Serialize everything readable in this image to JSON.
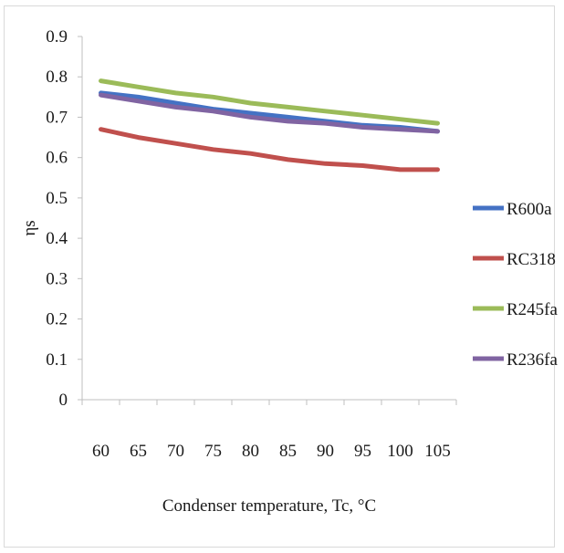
{
  "chart_data": {
    "type": "line",
    "x": [
      60,
      65,
      70,
      75,
      80,
      85,
      90,
      95,
      100,
      105
    ],
    "xlabel": "Condenser temperature, Tc, °C",
    "ylabel": "ηs",
    "ylim": [
      0,
      0.9
    ],
    "yticks": [
      "0",
      "0.1",
      "0.2",
      "0.3",
      "0.4",
      "0.5",
      "0.6",
      "0.7",
      "0.8",
      "0.9"
    ],
    "xticks": [
      "60",
      "65",
      "70",
      "75",
      "80",
      "85",
      "90",
      "95",
      "100",
      "105"
    ],
    "grid": false,
    "legend_position": "right",
    "series": [
      {
        "name": "R600a",
        "color": "#4472c4",
        "values": [
          0.76,
          0.75,
          0.735,
          0.72,
          0.71,
          0.7,
          0.69,
          0.68,
          0.675,
          0.665
        ]
      },
      {
        "name": "RC318",
        "color": "#c0504d",
        "values": [
          0.67,
          0.65,
          0.635,
          0.62,
          0.61,
          0.595,
          0.585,
          0.58,
          0.57,
          0.57
        ]
      },
      {
        "name": "R245fa",
        "color": "#9bbb59",
        "values": [
          0.79,
          0.775,
          0.76,
          0.75,
          0.735,
          0.725,
          0.715,
          0.705,
          0.695,
          0.685
        ]
      },
      {
        "name": "R236fa",
        "color": "#8064a2",
        "values": [
          0.755,
          0.74,
          0.725,
          0.715,
          0.7,
          0.69,
          0.685,
          0.675,
          0.67,
          0.665
        ]
      }
    ]
  }
}
